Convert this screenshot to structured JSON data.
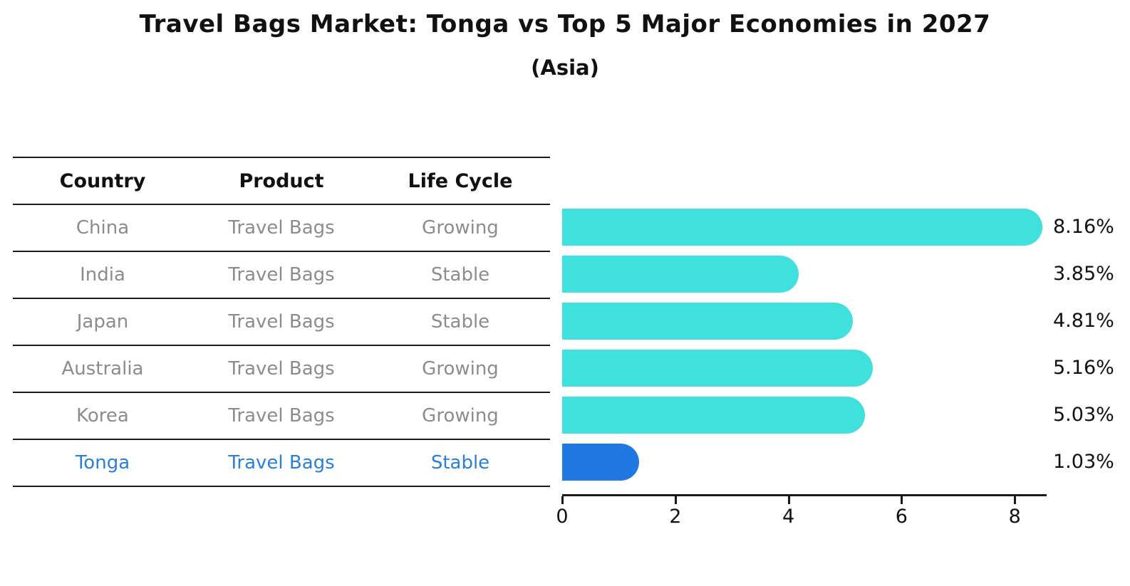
{
  "title": "Travel Bags Market: Tonga vs Top 5 Major Economies in 2027",
  "subtitle": "(Asia)",
  "table": {
    "headers": [
      "Country",
      "Product",
      "Life Cycle"
    ],
    "rows": [
      {
        "country": "China",
        "product": "Travel Bags",
        "life_cycle": "Growing",
        "highlight": false
      },
      {
        "country": "India",
        "product": "Travel Bags",
        "life_cycle": "Stable",
        "highlight": false
      },
      {
        "country": "Japan",
        "product": "Travel Bags",
        "life_cycle": "Stable",
        "highlight": false
      },
      {
        "country": "Australia",
        "product": "Travel Bags",
        "life_cycle": "Growing",
        "highlight": false
      },
      {
        "country": "Korea",
        "product": "Travel Bags",
        "life_cycle": "Growing",
        "highlight": false
      },
      {
        "country": "Tonga",
        "product": "Travel Bags",
        "life_cycle": "Stable",
        "highlight": true
      }
    ]
  },
  "chart_data": {
    "type": "bar",
    "orientation": "horizontal",
    "title": "Travel Bags Market: Tonga vs Top 5 Major Economies in 2027",
    "subtitle": "(Asia)",
    "categories": [
      "China",
      "India",
      "Japan",
      "Australia",
      "Korea",
      "Tonga"
    ],
    "values": [
      8.16,
      3.85,
      4.81,
      5.16,
      5.03,
      1.03
    ],
    "value_labels": [
      "8.16%",
      "3.85%",
      "4.81%",
      "5.16%",
      "5.03%",
      "1.03%"
    ],
    "highlight_index": 5,
    "xticks": [
      0,
      2,
      4,
      6,
      8
    ],
    "xlim": [
      0,
      8.55
    ],
    "grid": false,
    "legend": "none",
    "colors": {
      "bar": "#40e0dc",
      "highlight_bar": "#2079e2",
      "highlight_text": "#2a80d8",
      "text": "#111111",
      "muted_text": "#8c8c8c",
      "axis": "#1a1a1a"
    }
  }
}
